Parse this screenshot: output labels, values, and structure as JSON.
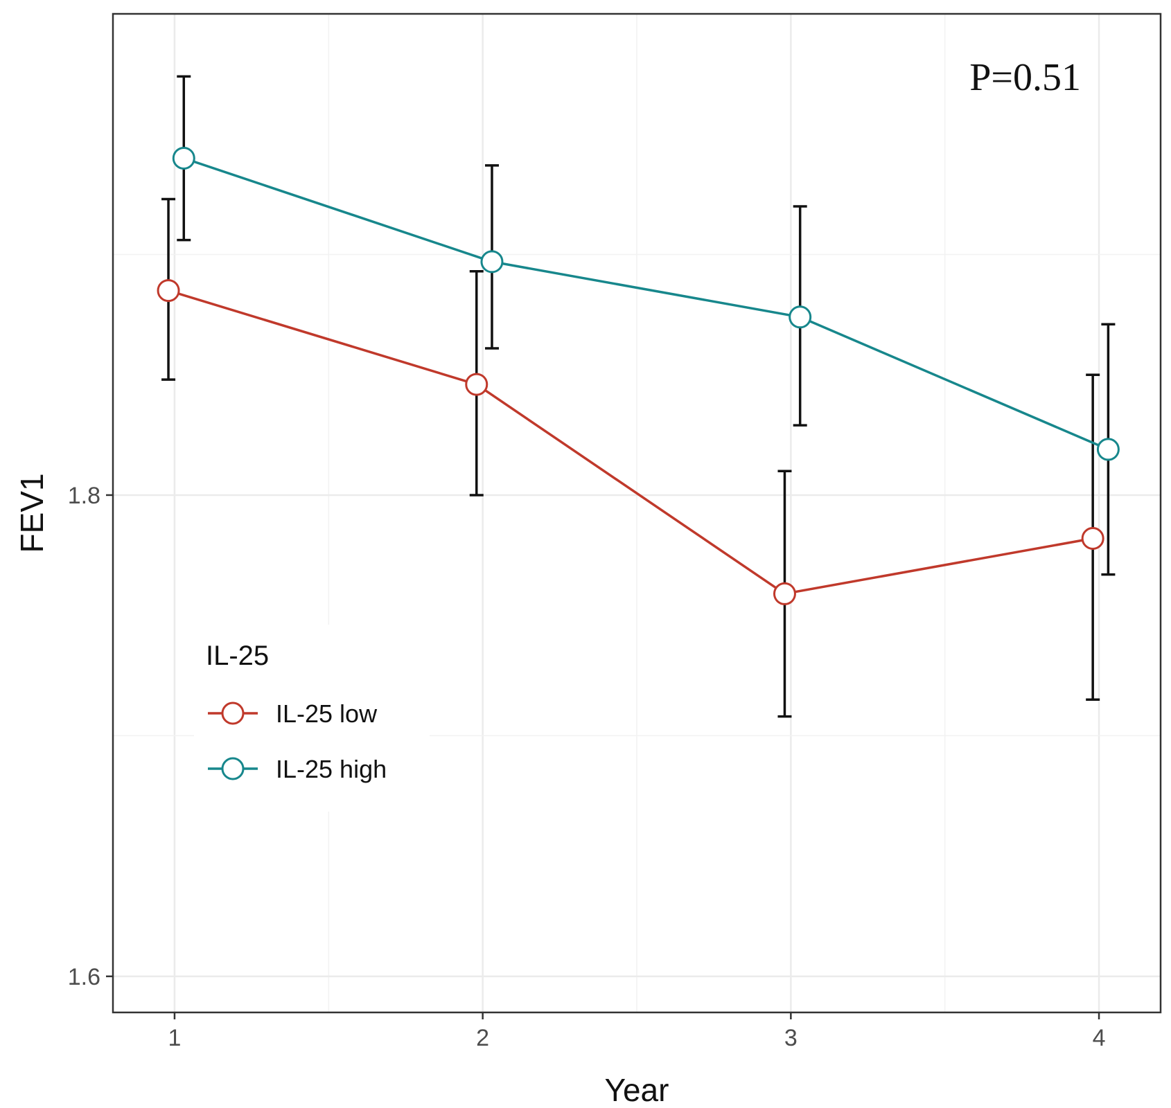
{
  "chart_data": {
    "type": "line",
    "x": [
      1,
      2,
      3,
      4
    ],
    "xlabel": "Year",
    "ylabel": "FEV1",
    "xlim": [
      0.8,
      4.2
    ],
    "ylim": [
      1.585,
      2.0
    ],
    "x_ticks": [
      "1",
      "2",
      "3",
      "4"
    ],
    "y_ticks": [
      "1.6",
      "1.8"
    ],
    "y_tick_values": [
      1.6,
      1.8
    ],
    "grid": true,
    "annotation": "P=0.51",
    "legend": {
      "title": "IL-25",
      "position": "center-left"
    },
    "series": [
      {
        "name": "IL-25 low",
        "color": "#c0392b",
        "x_offset": -0.02,
        "values": [
          1.885,
          1.846,
          1.759,
          1.782
        ],
        "error_low": [
          1.848,
          1.8,
          1.708,
          1.715
        ],
        "error_high": [
          1.923,
          1.893,
          1.81,
          1.85
        ]
      },
      {
        "name": "IL-25 high",
        "color": "#17878c",
        "x_offset": 0.03,
        "values": [
          1.94,
          1.897,
          1.874,
          1.819
        ],
        "error_low": [
          1.906,
          1.861,
          1.829,
          1.767
        ],
        "error_high": [
          1.974,
          1.937,
          1.92,
          1.871
        ]
      }
    ]
  }
}
